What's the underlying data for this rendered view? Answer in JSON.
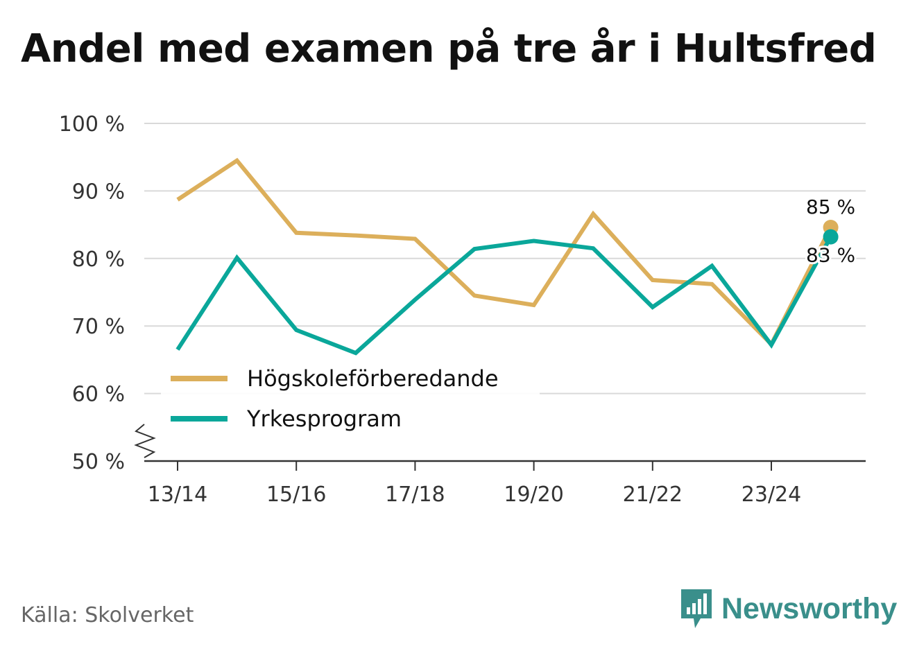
{
  "title": "Andel med examen på tre år i Hultsfred",
  "source": "Källa: Skolverket",
  "brand": {
    "name": "Newsworthy",
    "icon": "newsworthy-logo-icon"
  },
  "chart_data": {
    "type": "line",
    "categories": [
      "13/14",
      "14/15",
      "15/16",
      "16/17",
      "17/18",
      "18/19",
      "19/20",
      "20/21",
      "21/22",
      "22/23",
      "23/24",
      "24/25"
    ],
    "x_tick_labels": [
      "13/14",
      "15/16",
      "17/18",
      "19/20",
      "21/22",
      "23/24"
    ],
    "y_ticks": [
      50,
      60,
      70,
      80,
      90,
      100
    ],
    "y_tick_labels": [
      "50 %",
      "60 %",
      "70 %",
      "80 %",
      "90 %",
      "100 %"
    ],
    "ylim": [
      50,
      100
    ],
    "y_axis_break": true,
    "grid": true,
    "legend_position": "bottom-left",
    "series": [
      {
        "name": "Högskoleförberedande",
        "color": "#dcaf5b",
        "values": [
          88.7,
          94.5,
          83.8,
          83.4,
          82.9,
          74.5,
          73.1,
          86.6,
          76.8,
          76.2,
          67.3,
          84.6
        ],
        "end_label": "85 %"
      },
      {
        "name": "Yrkesprogram",
        "color": "#0aa79a",
        "values": [
          66.5,
          80.1,
          69.4,
          66.0,
          73.9,
          81.4,
          82.6,
          81.5,
          72.8,
          78.9,
          67.2,
          83.2
        ],
        "end_label": "83 %"
      }
    ],
    "title": "Andel med examen på tre år i Hultsfred",
    "xlabel": "",
    "ylabel": ""
  }
}
